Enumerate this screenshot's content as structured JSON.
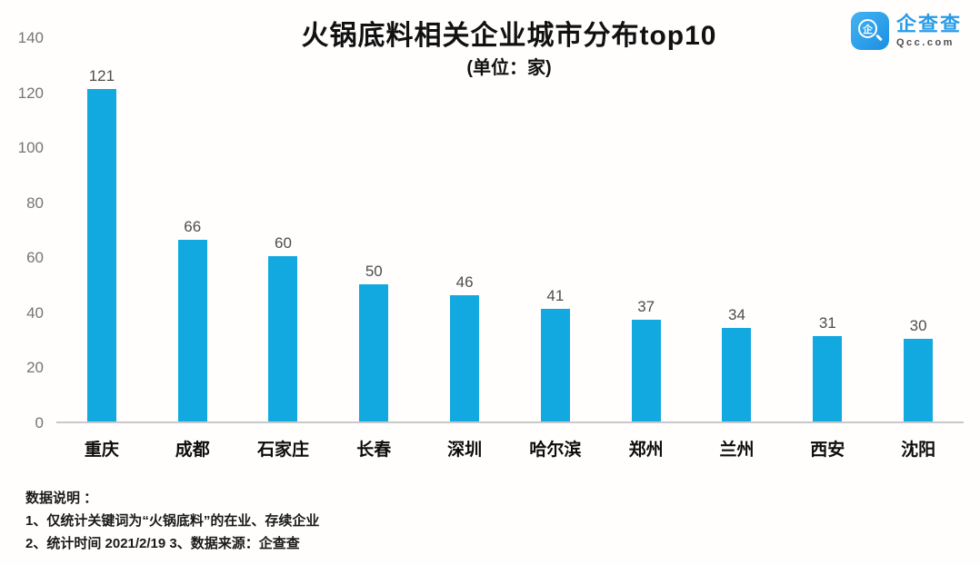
{
  "title": "火锅底料相关企业城市分布top10",
  "subtitle": "(单位：家)",
  "logo": {
    "name": "企查查",
    "domain": "Qcc.com",
    "icon": "qcc-magnifier-icon",
    "icon_glyph": "企",
    "brand_color": "#2a9be7"
  },
  "chart_data": {
    "type": "bar",
    "title": "火锅底料相关企业城市分布top10",
    "subtitle": "(单位：家)",
    "categories": [
      "重庆",
      "成都",
      "石家庄",
      "长春",
      "深圳",
      "哈尔滨",
      "郑州",
      "兰州",
      "西安",
      "沈阳"
    ],
    "values": [
      121,
      66,
      60,
      50,
      46,
      41,
      37,
      34,
      31,
      30
    ],
    "xlabel": "",
    "ylabel": "",
    "ylim": [
      0,
      140
    ],
    "yticks": [
      0,
      20,
      40,
      60,
      80,
      100,
      120,
      140
    ],
    "bar_color": "#12a9e1",
    "value_label_color": "#4d4d4d",
    "axis_color": "#c9c9c9",
    "grid": false,
    "legend": false
  },
  "notes": {
    "heading": "数据说明 ：",
    "line1": "1、仅统计关键词为“火锅底料”的在业、存续企业",
    "line2": "2、统计时间 2021/2/19   3、数据来源：企查查"
  }
}
